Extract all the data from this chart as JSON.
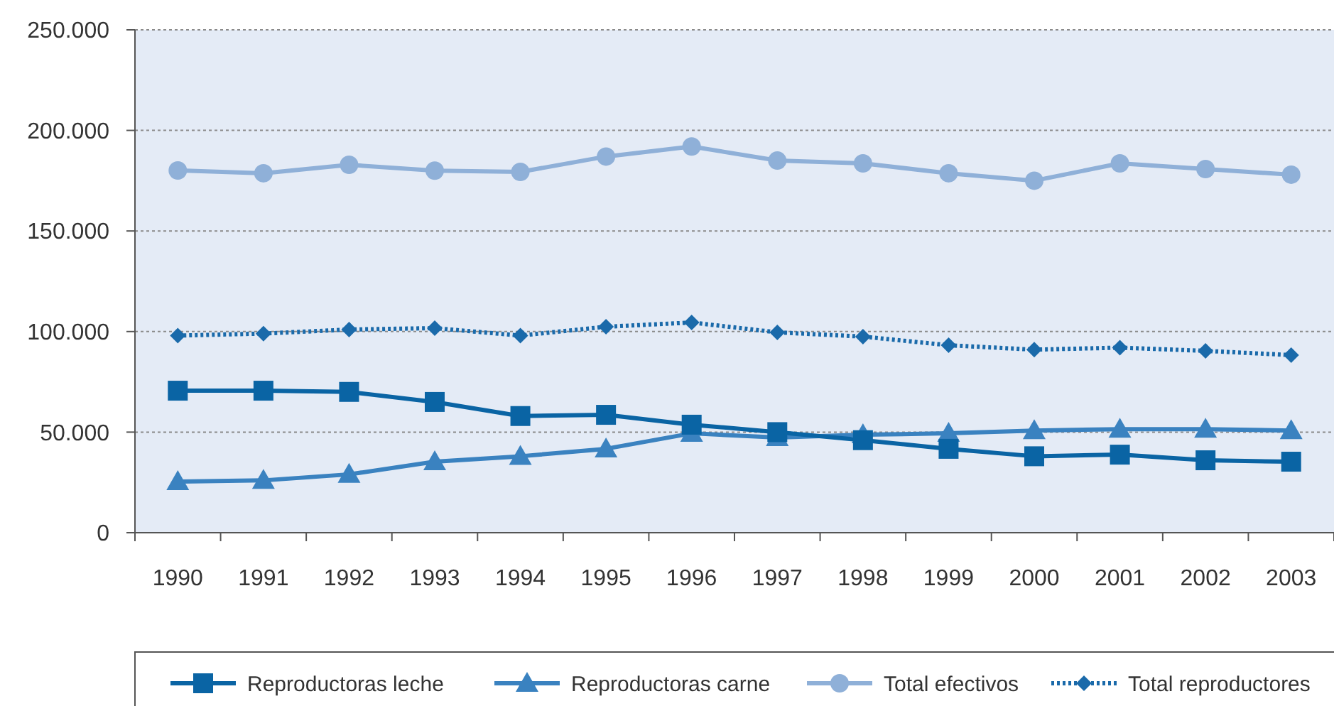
{
  "chart_data": {
    "type": "line",
    "categories": [
      "1990",
      "1991",
      "1992",
      "1993",
      "1994",
      "1995",
      "1996",
      "1997",
      "1998",
      "1999",
      "2000",
      "2001",
      "2002",
      "2003"
    ],
    "series": [
      {
        "name": "Reproductoras leche",
        "color": "#0a64a4",
        "marker": "square",
        "line_style": "solid",
        "values": [
          70600,
          70600,
          70000,
          65000,
          58000,
          58600,
          53700,
          50000,
          46000,
          41700,
          38000,
          38800,
          36000,
          35300
        ]
      },
      {
        "name": "Reproductoras carne",
        "color": "#3a82c0",
        "marker": "triangle",
        "line_style": "solid",
        "values": [
          25400,
          26000,
          29000,
          35300,
          38000,
          41700,
          49400,
          47300,
          48700,
          49400,
          50800,
          51500,
          51500,
          50800
        ]
      },
      {
        "name": "Total efectivos",
        "color": "#8fb0d8",
        "marker": "circle",
        "line_style": "solid",
        "values": [
          180100,
          178700,
          182900,
          180000,
          179400,
          187000,
          192000,
          185000,
          183600,
          178700,
          175000,
          183600,
          180800,
          178000
        ]
      },
      {
        "name": "Total reproductores",
        "color": "#1a6aaa",
        "marker": "diamond",
        "line_style": "dotted",
        "values": [
          98000,
          99000,
          101000,
          101700,
          98000,
          102400,
          104500,
          99600,
          97500,
          93200,
          91000,
          92000,
          90400,
          88300
        ]
      }
    ],
    "ylim": [
      0,
      250000
    ],
    "yticks": [
      0,
      {
        "value": 50000,
        "label": "50.000"
      },
      {
        "value": 100000,
        "label": "100.000"
      },
      {
        "value": 150000,
        "label": "150.000"
      },
      {
        "value": 200000,
        "label": "200.000"
      },
      {
        "value": 250000,
        "label": "250.000"
      }
    ],
    "grid": "y",
    "legend": "bottom"
  }
}
